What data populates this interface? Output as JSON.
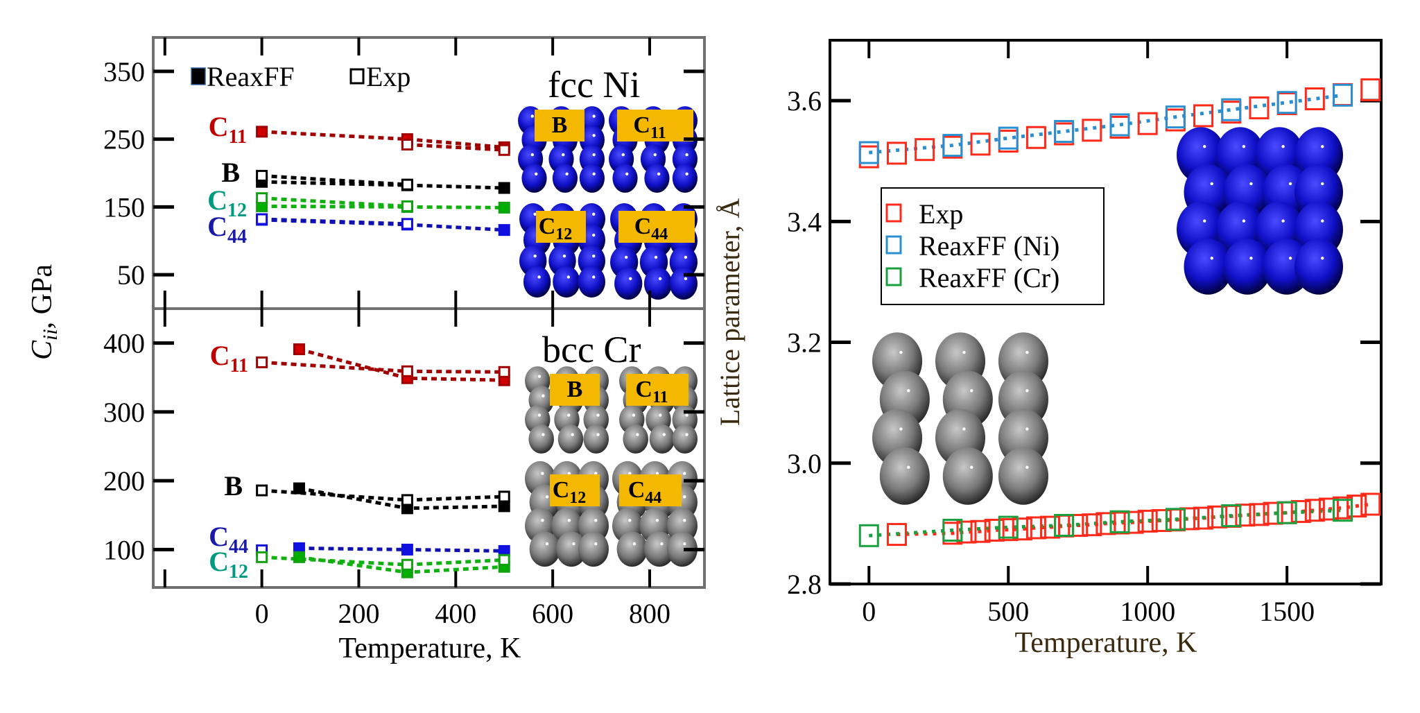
{
  "colors": {
    "C11": "#d00000",
    "B": "#000000",
    "C12": "#00b000",
    "C44": "#1010e0",
    "C11_label": "#c00000",
    "C12_label": "#009a80",
    "C44_label": "#1a1aa8",
    "exp": "#ff2a1a",
    "reaxff_ni": "#2a8fd0",
    "reaxff_cr": "#1aa040",
    "label_box": "#f5b800",
    "ni_atom": "#1010d0",
    "cr_atom": "#808080",
    "right_axis_label": "#3a2a10"
  },
  "chart_data": [
    {
      "type": "line",
      "panel": "top-left",
      "title": "fcc Ni",
      "xlabel": "",
      "ylabel": "C_ii, GPa",
      "xlim": [
        -224,
        913
      ],
      "ylim": [
        0,
        400
      ],
      "yticks": [
        50,
        150,
        250,
        350
      ],
      "xticks": [
        -200,
        0,
        200,
        400,
        600,
        800
      ],
      "legend": {
        "placement": "top-left",
        "entries": [
          {
            "label": "ReaxFF",
            "marker": "filled-square"
          },
          {
            "label": "Exp",
            "marker": "open-square"
          }
        ]
      },
      "insets": [
        "B",
        "C11",
        "C12",
        "C44"
      ],
      "series": [
        {
          "name": "C11 ReaxFF",
          "label": {
            "letter": "C",
            "sub": "11"
          },
          "key": "C11",
          "filled": true,
          "x": [
            0,
            300,
            500
          ],
          "y": [
            261,
            250,
            238
          ]
        },
        {
          "name": "C11 Exp",
          "key": "C11",
          "filled": false,
          "x": [
            300,
            500
          ],
          "y": [
            242,
            234
          ]
        },
        {
          "name": "B ReaxFF",
          "label": {
            "letter": "B",
            "sub": ""
          },
          "key": "B",
          "filled": true,
          "x": [
            0,
            300,
            500
          ],
          "y": [
            187,
            182,
            178
          ]
        },
        {
          "name": "B Exp",
          "key": "B",
          "filled": false,
          "x": [
            0,
            300
          ],
          "y": [
            196,
            183
          ]
        },
        {
          "name": "C12 ReaxFF",
          "label": {
            "letter": "C",
            "sub": "12"
          },
          "key": "C12",
          "filled": true,
          "x": [
            0,
            300,
            500
          ],
          "y": [
            151,
            150,
            149
          ]
        },
        {
          "name": "C12 Exp",
          "key": "C12",
          "filled": false,
          "x": [
            0,
            300
          ],
          "y": [
            163,
            151
          ]
        },
        {
          "name": "C44 ReaxFF",
          "label": {
            "letter": "C",
            "sub": "44"
          },
          "key": "C44",
          "filled": true,
          "x": [
            0,
            300,
            500
          ],
          "y": [
            131,
            124,
            116
          ]
        },
        {
          "name": "C44 Exp",
          "key": "C44",
          "filled": false,
          "x": [
            0,
            300
          ],
          "y": [
            132,
            125
          ]
        }
      ]
    },
    {
      "type": "line",
      "panel": "bottom-left",
      "title": "bcc Cr",
      "xlabel": "Temperature, K",
      "xlim": [
        -224,
        913
      ],
      "ylim": [
        45,
        450
      ],
      "yticks": [
        100,
        200,
        300,
        400
      ],
      "xticks": [
        -200,
        0,
        200,
        400,
        600,
        800
      ],
      "xticklabels": [
        "0",
        "200",
        "400",
        "600",
        "800"
      ],
      "insets": [
        "B",
        "C11",
        "C12",
        "C44"
      ],
      "series": [
        {
          "name": "C11 ReaxFF",
          "label": {
            "letter": "C",
            "sub": "11"
          },
          "key": "C11",
          "filled": true,
          "x": [
            77,
            300,
            500
          ],
          "y": [
            391,
            349,
            346
          ]
        },
        {
          "name": "C11 Exp",
          "key": "C11",
          "filled": false,
          "x": [
            0,
            300,
            500
          ],
          "y": [
            372,
            359,
            358
          ]
        },
        {
          "name": "B ReaxFF",
          "label": {
            "letter": "B",
            "sub": ""
          },
          "key": "B",
          "filled": true,
          "x": [
            77,
            300,
            500
          ],
          "y": [
            189,
            160,
            163
          ]
        },
        {
          "name": "B Exp",
          "key": "B",
          "filled": false,
          "x": [
            0,
            300,
            500
          ],
          "y": [
            186,
            172,
            177
          ]
        },
        {
          "name": "C44 ReaxFF",
          "label": {
            "letter": "C",
            "sub": "44"
          },
          "key": "C44",
          "filled": true,
          "x": [
            77,
            300,
            500
          ],
          "y": [
            102,
            100,
            98
          ]
        },
        {
          "name": "C44 Exp",
          "key": "C44",
          "filled": false,
          "x": [
            0
          ],
          "y": [
            99
          ]
        },
        {
          "name": "C12 ReaxFF",
          "label": {
            "letter": "C",
            "sub": "12"
          },
          "key": "C12",
          "filled": true,
          "x": [
            77,
            300,
            500
          ],
          "y": [
            89,
            67,
            75
          ]
        },
        {
          "name": "C12 Exp",
          "key": "C12",
          "filled": false,
          "x": [
            0,
            300,
            500
          ],
          "y": [
            89,
            78,
            85
          ]
        }
      ]
    },
    {
      "type": "line",
      "panel": "right",
      "title": "",
      "xlabel": "Temperature, K",
      "ylabel": "Lattice parameter, Å",
      "xlim": [
        -140,
        1838
      ],
      "ylim": [
        2.8,
        3.7
      ],
      "xticks": [
        0,
        500,
        1000,
        1500
      ],
      "yticks": [
        2.8,
        3.0,
        3.2,
        3.4,
        3.6
      ],
      "yticklabels": [
        "2.8",
        "3.0",
        "3.2",
        "3.4",
        "3.6"
      ],
      "legend": {
        "placement": "center-left",
        "entries": [
          "Exp",
          "ReaxFF (Ni)",
          "ReaxFF (Cr)"
        ]
      },
      "series": [
        {
          "name": "Exp",
          "legend": true,
          "color": "exp",
          "line": false,
          "x": [
            0,
            100,
            200,
            300,
            400,
            500,
            600,
            700,
            800,
            900,
            1000,
            1100,
            1200,
            1300,
            1400,
            1500,
            1600,
            1700,
            1800
          ],
          "y": [
            3.507,
            3.513,
            3.519,
            3.523,
            3.528,
            3.533,
            3.539,
            3.545,
            3.551,
            3.556,
            3.562,
            3.568,
            3.575,
            3.581,
            3.588,
            3.595,
            3.603,
            3.61,
            3.618
          ]
        },
        {
          "name": "ReaxFF (Ni)",
          "legend": true,
          "color": "reaxff_ni",
          "line": true,
          "x": [
            0,
            300,
            500,
            700,
            900,
            1100,
            1300,
            1500,
            1700
          ],
          "y": [
            3.514,
            3.526,
            3.538,
            3.549,
            3.56,
            3.573,
            3.585,
            3.597,
            3.609
          ]
        },
        {
          "name": "Exp (Cr)",
          "legend": false,
          "color": "exp",
          "line": true,
          "x": [
            100,
            300,
            350,
            400,
            450,
            500,
            550,
            600,
            650,
            700,
            750,
            800,
            850,
            900,
            950,
            1000,
            1050,
            1100,
            1150,
            1200,
            1250,
            1300,
            1350,
            1400,
            1450,
            1500,
            1550,
            1600,
            1650,
            1700,
            1750,
            1800
          ],
          "y": [
            2.882,
            2.884,
            2.886,
            2.887,
            2.889,
            2.89,
            2.891,
            2.893,
            2.894,
            2.896,
            2.897,
            2.898,
            2.9,
            2.901,
            2.902,
            2.904,
            2.905,
            2.906,
            2.908,
            2.909,
            2.911,
            2.912,
            2.914,
            2.915,
            2.917,
            2.918,
            2.92,
            2.922,
            2.924,
            2.926,
            2.929,
            2.932
          ]
        },
        {
          "name": "ReaxFF (Cr)",
          "legend": true,
          "color": "reaxff_cr",
          "line": true,
          "x": [
            0,
            300,
            500,
            700,
            900,
            1100,
            1300,
            1500,
            1700
          ],
          "y": [
            2.88,
            2.889,
            2.894,
            2.897,
            2.903,
            2.907,
            2.913,
            2.918,
            2.922
          ]
        }
      ]
    }
  ]
}
